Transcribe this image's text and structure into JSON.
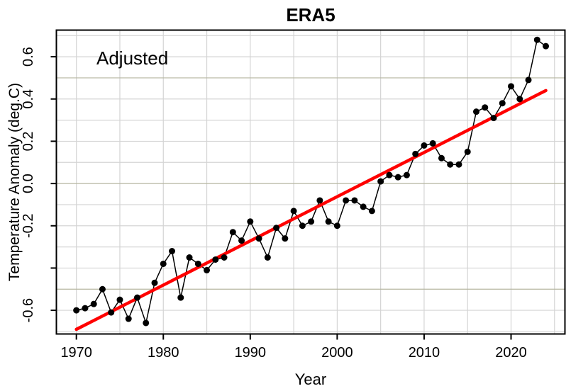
{
  "figure": {
    "background": "#ffffff",
    "frame_color": "#000000"
  },
  "chart_data": {
    "type": "line",
    "title": "ERA5",
    "xlabel": "Year",
    "ylabel": "Temperature Anomaly (deg.C)",
    "annotation": {
      "text": "Adjusted"
    },
    "xlim": [
      1967.7,
      2026.2
    ],
    "ylim": [
      -0.712,
      0.726
    ],
    "x_ticks": {
      "values": [
        1970,
        1980,
        1990,
        2000,
        2010,
        2020
      ],
      "labels": [
        "1970",
        "1980",
        "1990",
        "2000",
        "2010",
        "2020"
      ]
    },
    "y_ticks": {
      "values": [
        0.6,
        0.4,
        0.2,
        0.0,
        -0.2,
        -0.4,
        -0.6
      ],
      "labels": [
        "0.6",
        "0.4",
        "0.2",
        "0.0",
        "-0.2",
        "",
        "-0.6"
      ]
    },
    "grid": {
      "x_start": 1970,
      "x_end": 2025,
      "x_step_years": 5,
      "y_start": -0.7,
      "y_end": 0.7,
      "y_step": 0.1,
      "emphasis_y": [
        -0.5,
        0,
        0.5
      ],
      "color": "#d4d4d4",
      "emphasis_color": "#b6b6a0"
    },
    "series": [
      {
        "name": "annual-temperature-anomaly",
        "color": "#000000",
        "marker": "filled-circle",
        "x": [
          1970,
          1971,
          1972,
          1973,
          1974,
          1975,
          1976,
          1977,
          1978,
          1979,
          1980,
          1981,
          1982,
          1983,
          1984,
          1985,
          1986,
          1987,
          1988,
          1989,
          1990,
          1991,
          1992,
          1993,
          1994,
          1995,
          1996,
          1997,
          1998,
          1999,
          2000,
          2001,
          2002,
          2003,
          2004,
          2005,
          2006,
          2007,
          2008,
          2009,
          2010,
          2011,
          2012,
          2013,
          2014,
          2015,
          2016,
          2017,
          2018,
          2019,
          2020,
          2021,
          2022,
          2023,
          2024
        ],
        "values": [
          -0.6,
          -0.59,
          -0.57,
          -0.5,
          -0.61,
          -0.55,
          -0.64,
          -0.54,
          -0.66,
          -0.47,
          -0.38,
          -0.32,
          -0.54,
          -0.35,
          -0.38,
          -0.41,
          -0.36,
          -0.35,
          -0.23,
          -0.27,
          -0.18,
          -0.26,
          -0.35,
          -0.21,
          -0.26,
          -0.13,
          -0.2,
          -0.18,
          -0.08,
          -0.18,
          -0.2,
          -0.08,
          -0.08,
          -0.11,
          -0.13,
          0.01,
          0.04,
          0.03,
          0.04,
          0.14,
          0.18,
          0.19,
          0.12,
          0.09,
          0.09,
          0.15,
          0.34,
          0.36,
          0.31,
          0.38,
          0.46,
          0.4,
          0.49,
          0.68,
          0.65
        ]
      }
    ],
    "trend": {
      "name": "linear-trend-line",
      "color": "#ff0000",
      "x": [
        1970,
        2024
      ],
      "values": [
        -0.69,
        0.44
      ]
    }
  }
}
